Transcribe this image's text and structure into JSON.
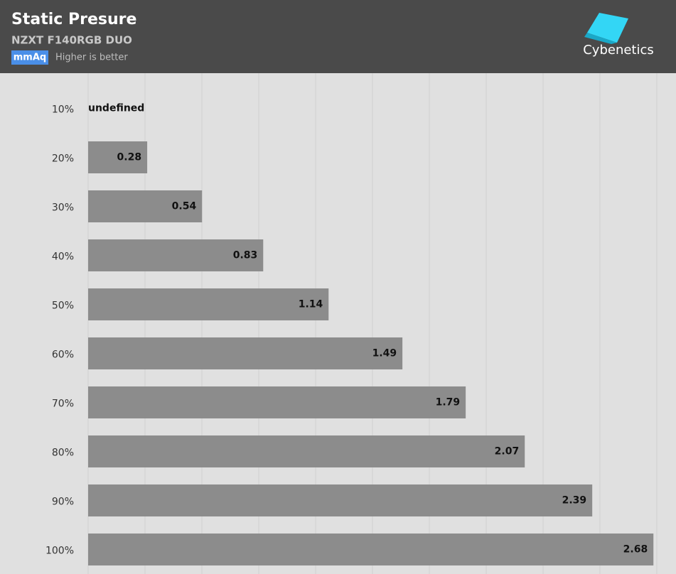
{
  "chart_data": {
    "type": "barh",
    "title": "Static Presure",
    "subtitle": "NZXT F140RGB DUO",
    "unit": "mmAq",
    "note": "Higher is better",
    "brand": "Cybenetics",
    "categories": [
      "10%",
      "20%",
      "30%",
      "40%",
      "50%",
      "60%",
      "70%",
      "80%",
      "90%",
      "100%"
    ],
    "values": [
      null,
      0.28,
      0.54,
      0.83,
      1.14,
      1.49,
      1.79,
      2.07,
      2.39,
      2.68
    ],
    "value_labels": [
      "undefined",
      "0.28",
      "0.54",
      "0.83",
      "1.14",
      "1.49",
      "1.79",
      "2.07",
      "2.39",
      "2.68"
    ],
    "color": "#8c8c8c",
    "xlim": [
      0,
      2.75
    ]
  }
}
